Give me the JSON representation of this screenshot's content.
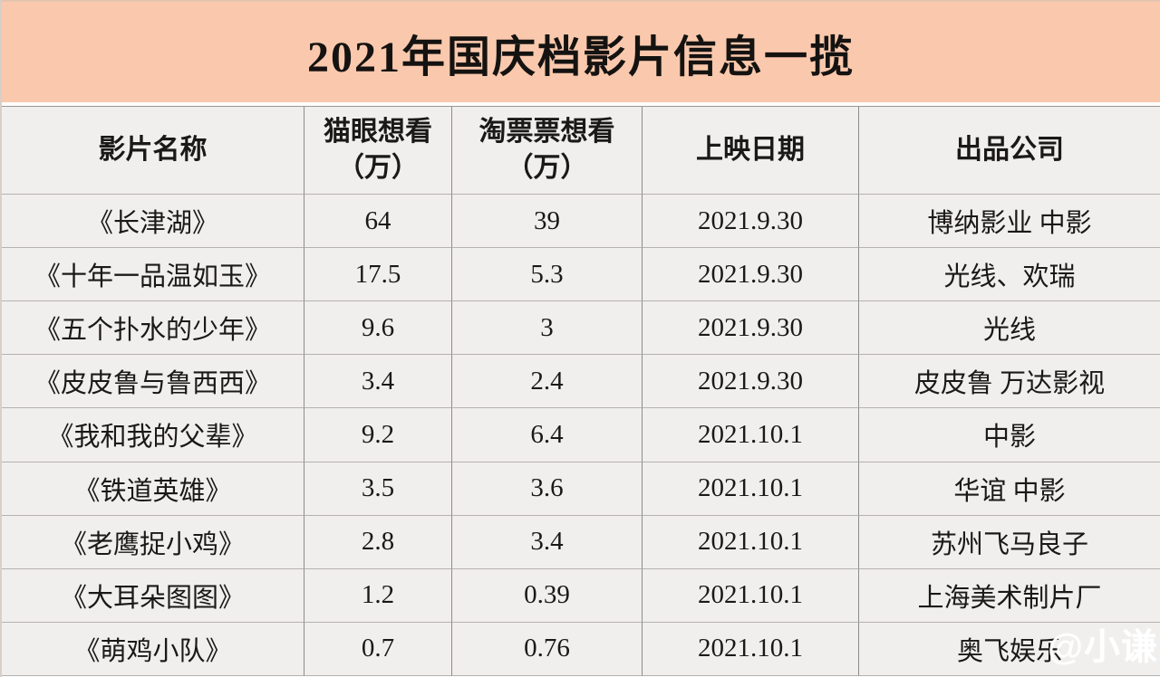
{
  "page_title": "2021年国庆档影片信息一揽",
  "watermark": "@小谦",
  "colors": {
    "title_bg": "#FAC9AD",
    "cell_bg": "#F1EFEE",
    "column_line": "#8C8C8C",
    "row_line": "#B4B1B0",
    "watermark_color": "#FFFFFF",
    "text_color": "#1B1918"
  },
  "chart_data": {
    "type": "table",
    "title": "2021年国庆档影片信息一揽",
    "columns": [
      "影片名称",
      "猫眼想看",
      "淘票票想看",
      "上映日期",
      "出品公司"
    ],
    "column_subs": [
      "",
      "（万）",
      "（万）",
      "",
      ""
    ],
    "rows": [
      [
        "《长津湖》",
        "64",
        "39",
        "2021.9.30",
        "博纳影业 中影"
      ],
      [
        "《十年一品温如玉》",
        "17.5",
        "5.3",
        "2021.9.30",
        "光线、欢瑞"
      ],
      [
        "《五个扑水的少年》",
        "9.6",
        "3",
        "2021.9.30",
        "光线"
      ],
      [
        "《皮皮鲁与鲁西西》",
        "3.4",
        "2.4",
        "2021.9.30",
        "皮皮鲁 万达影视"
      ],
      [
        "《我和我的父辈》",
        "9.2",
        "6.4",
        "2021.10.1",
        "中影"
      ],
      [
        "《铁道英雄》",
        "3.5",
        "3.6",
        "2021.10.1",
        "华谊 中影"
      ],
      [
        "《老鹰捉小鸡》",
        "2.8",
        "3.4",
        "2021.10.1",
        "苏州飞马良子"
      ],
      [
        "《大耳朵图图》",
        "1.2",
        "0.39",
        "2021.10.1",
        "上海美术制片厂"
      ],
      [
        "《萌鸡小队》",
        "0.7",
        "0.76",
        "2021.10.1",
        "奥飞娱乐"
      ]
    ],
    "maoyan_values": [
      64,
      17.5,
      9.6,
      3.4,
      9.2,
      3.5,
      2.8,
      1.2,
      0.7
    ],
    "taopiaopiao_values": [
      39,
      5.3,
      3,
      2.4,
      6.4,
      3.6,
      3.4,
      0.39,
      0.76
    ],
    "value_unit": "万"
  }
}
